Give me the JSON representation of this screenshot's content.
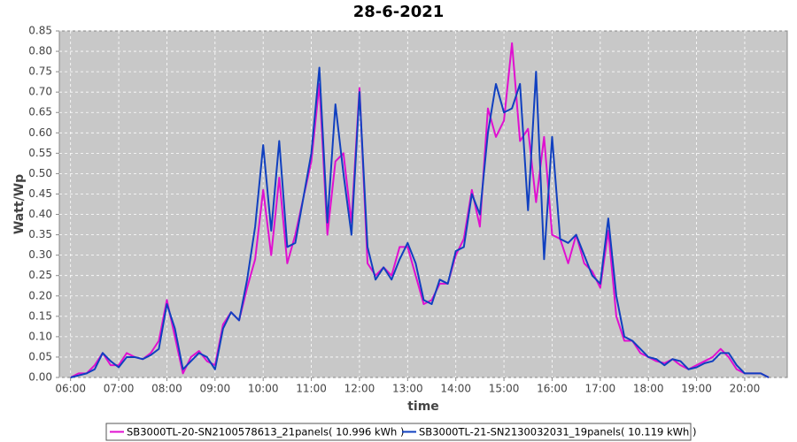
{
  "chart_data": {
    "type": "line",
    "title": "28-6-2021",
    "x_label": "time",
    "y_label": "Watt/Wp",
    "x": [
      360,
      370,
      380,
      390,
      400,
      410,
      420,
      430,
      440,
      450,
      460,
      470,
      480,
      490,
      500,
      510,
      520,
      530,
      540,
      550,
      560,
      570,
      580,
      590,
      600,
      610,
      620,
      630,
      640,
      650,
      660,
      670,
      680,
      690,
      700,
      710,
      720,
      730,
      740,
      750,
      760,
      770,
      780,
      790,
      800,
      810,
      820,
      830,
      840,
      850,
      860,
      870,
      880,
      890,
      900,
      910,
      920,
      930,
      940,
      950,
      960,
      970,
      980,
      990,
      1000,
      1010,
      1020,
      1030,
      1040,
      1050,
      1060,
      1070,
      1080,
      1090,
      1100,
      1110,
      1120,
      1130,
      1140,
      1150,
      1160,
      1170,
      1180,
      1190,
      1200,
      1210,
      1220,
      1230
    ],
    "series": [
      {
        "name": "SB3000TL-20-SN2100578613_21panels( 10.996 kWh )",
        "color": "#e010d0",
        "values": [
          0,
          0.01,
          0.01,
          0.03,
          0.06,
          0.03,
          0.03,
          0.06,
          0.05,
          0.045,
          0.06,
          0.09,
          0.19,
          0.1,
          0.01,
          0.05,
          0.065,
          0.04,
          0.03,
          0.13,
          0.16,
          0.14,
          0.22,
          0.29,
          0.46,
          0.3,
          0.49,
          0.28,
          0.35,
          0.44,
          0.53,
          0.72,
          0.35,
          0.53,
          0.55,
          0.38,
          0.71,
          0.28,
          0.25,
          0.27,
          0.25,
          0.32,
          0.32,
          0.25,
          0.18,
          0.19,
          0.23,
          0.23,
          0.3,
          0.34,
          0.46,
          0.37,
          0.66,
          0.59,
          0.63,
          0.82,
          0.58,
          0.61,
          0.43,
          0.59,
          0.35,
          0.34,
          0.28,
          0.35,
          0.28,
          0.26,
          0.22,
          0.36,
          0.15,
          0.09,
          0.09,
          0.06,
          0.05,
          0.04,
          0.035,
          0.045,
          0.03,
          0.02,
          0.03,
          0.04,
          0.05,
          0.07,
          0.05,
          0.02,
          0.01,
          0.01,
          0.01,
          0
        ]
      },
      {
        "name": "SB3000TL-21-SN2130032031_19panels( 10.119 kWh )",
        "color": "#1040c0",
        "values": [
          0,
          0.005,
          0.01,
          0.02,
          0.06,
          0.04,
          0.025,
          0.05,
          0.05,
          0.045,
          0.055,
          0.07,
          0.18,
          0.12,
          0.02,
          0.04,
          0.06,
          0.05,
          0.02,
          0.12,
          0.16,
          0.14,
          0.24,
          0.37,
          0.57,
          0.36,
          0.58,
          0.32,
          0.33,
          0.44,
          0.55,
          0.76,
          0.38,
          0.67,
          0.5,
          0.35,
          0.7,
          0.32,
          0.24,
          0.27,
          0.24,
          0.29,
          0.33,
          0.28,
          0.19,
          0.18,
          0.24,
          0.23,
          0.31,
          0.32,
          0.45,
          0.4,
          0.6,
          0.72,
          0.65,
          0.66,
          0.72,
          0.41,
          0.75,
          0.29,
          0.59,
          0.34,
          0.33,
          0.35,
          0.3,
          0.25,
          0.23,
          0.39,
          0.2,
          0.1,
          0.09,
          0.07,
          0.05,
          0.045,
          0.03,
          0.045,
          0.04,
          0.02,
          0.025,
          0.035,
          0.04,
          0.06,
          0.06,
          0.03,
          0.01,
          0.01,
          0.01,
          0
        ]
      }
    ],
    "xlim": [
      346,
      1253
    ],
    "xticks": [
      {
        "value": 360,
        "label": "06:00"
      },
      {
        "value": 420,
        "label": "07:00"
      },
      {
        "value": 480,
        "label": "08:00"
      },
      {
        "value": 540,
        "label": "09:00"
      },
      {
        "value": 600,
        "label": "10:00"
      },
      {
        "value": 660,
        "label": "11:00"
      },
      {
        "value": 720,
        "label": "12:00"
      },
      {
        "value": 780,
        "label": "13:00"
      },
      {
        "value": 840,
        "label": "14:00"
      },
      {
        "value": 900,
        "label": "15:00"
      },
      {
        "value": 960,
        "label": "16:00"
      },
      {
        "value": 1020,
        "label": "17:00"
      },
      {
        "value": 1080,
        "label": "18:00"
      },
      {
        "value": 1140,
        "label": "19:00"
      },
      {
        "value": 1200,
        "label": "20:00"
      }
    ],
    "ylim": [
      0,
      0.85
    ],
    "yticks": [
      {
        "value": 0,
        "label": "0.00"
      },
      {
        "value": 0.05,
        "label": "0.05"
      },
      {
        "value": 0.1,
        "label": "0.10"
      },
      {
        "value": 0.15,
        "label": "0.15"
      },
      {
        "value": 0.2,
        "label": "0.20"
      },
      {
        "value": 0.25,
        "label": "0.25"
      },
      {
        "value": 0.3,
        "label": "0.30"
      },
      {
        "value": 0.35,
        "label": "0.35"
      },
      {
        "value": 0.4,
        "label": "0.40"
      },
      {
        "value": 0.45,
        "label": "0.45"
      },
      {
        "value": 0.5,
        "label": "0.50"
      },
      {
        "value": 0.55,
        "label": "0.55"
      },
      {
        "value": 0.6,
        "label": "0.60"
      },
      {
        "value": 0.65,
        "label": "0.65"
      },
      {
        "value": 0.7,
        "label": "0.70"
      },
      {
        "value": 0.75,
        "label": "0.75"
      },
      {
        "value": 0.8,
        "label": "0.80"
      },
      {
        "value": 0.85,
        "label": "0.85"
      }
    ],
    "grid": true
  }
}
